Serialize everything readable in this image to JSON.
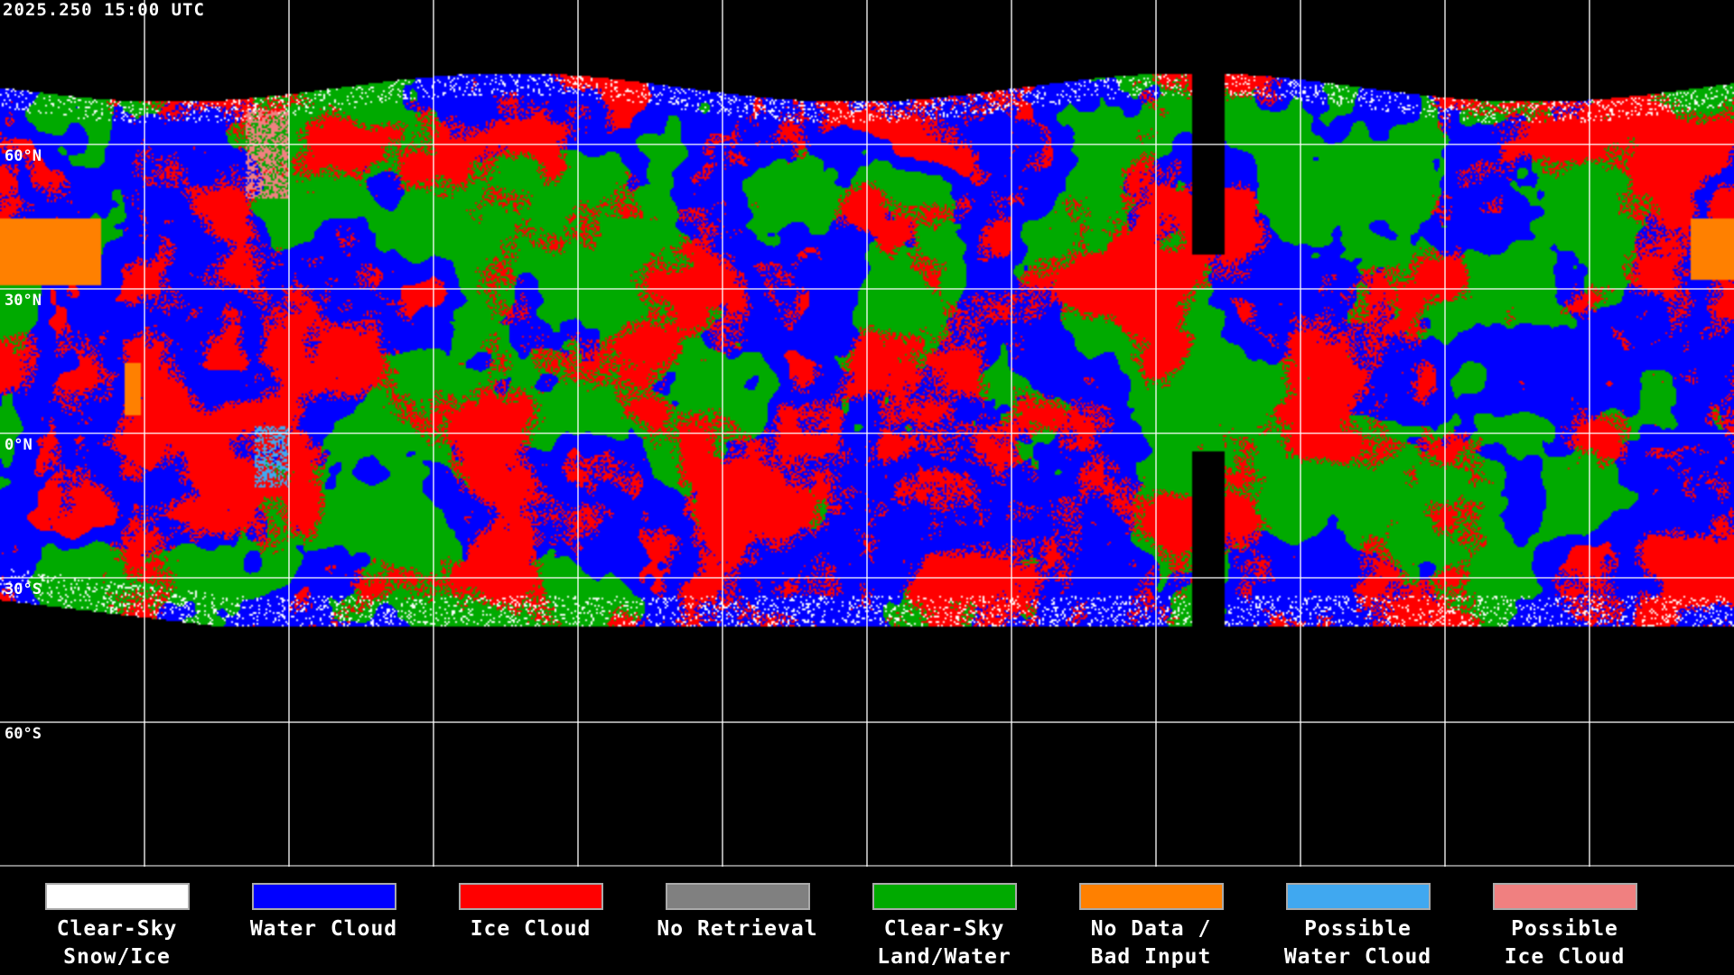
{
  "title": "2025.250 15:00 UTC",
  "lat_labels": [
    "60°N",
    "30°N",
    "0°N",
    "30°S",
    "60°S"
  ],
  "legend": [
    {
      "line1": "Clear-Sky",
      "line2": "Snow/Ice",
      "color": "#ffffff"
    },
    {
      "line1": "Water Cloud",
      "line2": "",
      "color": "#0000ff"
    },
    {
      "line1": "Ice Cloud",
      "line2": "",
      "color": "#ff0000"
    },
    {
      "line1": "No Retrieval",
      "line2": "",
      "color": "#808080"
    },
    {
      "line1": "Clear-Sky",
      "line2": "Land/Water",
      "color": "#00aa00"
    },
    {
      "line1": "No Data /",
      "line2": "Bad Input",
      "color": "#ff8000"
    },
    {
      "line1": "Possible",
      "line2": "Water Cloud",
      "color": "#40a8f0"
    },
    {
      "line1": "Possible",
      "line2": "Ice Cloud",
      "color": "#f08080"
    }
  ]
}
